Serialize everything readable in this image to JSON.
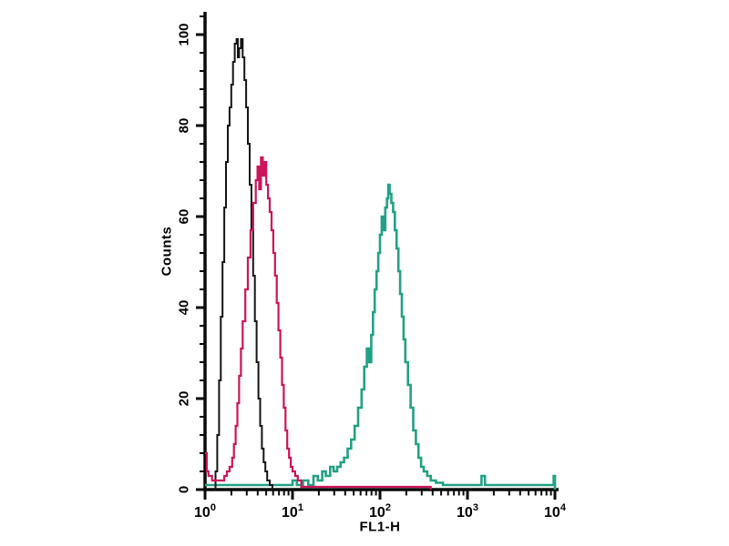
{
  "figure": {
    "background": "#ffffff",
    "axis_color": "#0a0a0a",
    "text_color": "#000000"
  },
  "chart_data": {
    "type": "line",
    "subtype": "flow-cytometry-overlay-histogram",
    "title": "",
    "xlabel": "FL1-H",
    "ylabel": "Counts",
    "x_scale": "log10",
    "x_range_exponents": [
      0,
      4
    ],
    "ylim": [
      0,
      104.8
    ],
    "grid": false,
    "legend": "none",
    "y_major_ticks": [
      0,
      20,
      40,
      60,
      80,
      100
    ],
    "y_minor_step": 4,
    "x_major_exponents": [
      0,
      1,
      2,
      3,
      4
    ],
    "x_major_tick_base": "10",
    "x_minor_multipliers": [
      2,
      3,
      4,
      5,
      6,
      7,
      8,
      9
    ],
    "series": [
      {
        "name": "teal-curve",
        "color": "#23a085",
        "stroke_width": 2.6,
        "peak": {
          "x": 126,
          "counts": 67
        },
        "points_log10x_counts": [
          [
            0.0,
            1
          ],
          [
            0.5,
            1
          ],
          [
            0.85,
            1
          ],
          [
            1.0,
            2
          ],
          [
            1.05,
            1
          ],
          [
            1.12,
            2
          ],
          [
            1.18,
            1
          ],
          [
            1.24,
            3
          ],
          [
            1.29,
            2
          ],
          [
            1.34,
            4
          ],
          [
            1.38,
            3
          ],
          [
            1.43,
            5
          ],
          [
            1.47,
            4
          ],
          [
            1.51,
            5
          ],
          [
            1.55,
            6
          ],
          [
            1.59,
            7
          ],
          [
            1.63,
            9
          ],
          [
            1.67,
            11
          ],
          [
            1.71,
            14
          ],
          [
            1.75,
            18
          ],
          [
            1.79,
            22
          ],
          [
            1.82,
            27
          ],
          [
            1.85,
            31
          ],
          [
            1.875,
            28
          ],
          [
            1.9,
            34
          ],
          [
            1.92,
            39
          ],
          [
            1.94,
            44
          ],
          [
            1.96,
            48
          ],
          [
            1.98,
            52
          ],
          [
            2.0,
            56
          ],
          [
            2.02,
            60
          ],
          [
            2.04,
            57
          ],
          [
            2.06,
            62
          ],
          [
            2.08,
            64
          ],
          [
            2.095,
            67
          ],
          [
            2.11,
            65
          ],
          [
            2.13,
            63
          ],
          [
            2.15,
            61
          ],
          [
            2.17,
            57
          ],
          [
            2.19,
            53
          ],
          [
            2.21,
            48
          ],
          [
            2.23,
            43
          ],
          [
            2.25,
            38
          ],
          [
            2.27,
            33
          ],
          [
            2.29,
            28
          ],
          [
            2.32,
            23
          ],
          [
            2.35,
            18
          ],
          [
            2.38,
            13
          ],
          [
            2.41,
            10
          ],
          [
            2.44,
            7
          ],
          [
            2.47,
            5
          ],
          [
            2.5,
            4
          ],
          [
            2.54,
            3
          ],
          [
            2.58,
            2
          ],
          [
            2.64,
            1.5
          ],
          [
            2.72,
            1
          ],
          [
            2.9,
            1
          ],
          [
            3.1,
            1
          ],
          [
            3.16,
            3
          ],
          [
            3.2,
            1
          ],
          [
            3.5,
            1
          ],
          [
            3.8,
            1
          ],
          [
            3.96,
            1
          ],
          [
            3.985,
            3
          ],
          [
            4.0,
            0
          ]
        ]
      },
      {
        "name": "black-curve",
        "color": "#141414",
        "stroke_width": 2.0,
        "peak": {
          "x": 2.3,
          "counts": 99
        },
        "points_log10x_counts": [
          [
            0.1,
            0
          ],
          [
            0.12,
            4
          ],
          [
            0.14,
            12
          ],
          [
            0.16,
            24
          ],
          [
            0.18,
            38
          ],
          [
            0.2,
            50
          ],
          [
            0.22,
            62
          ],
          [
            0.24,
            72
          ],
          [
            0.26,
            80
          ],
          [
            0.28,
            84
          ],
          [
            0.3,
            89
          ],
          [
            0.32,
            94
          ],
          [
            0.34,
            98
          ],
          [
            0.36,
            99
          ],
          [
            0.375,
            95
          ],
          [
            0.39,
            97
          ],
          [
            0.41,
            99
          ],
          [
            0.43,
            95
          ],
          [
            0.45,
            90
          ],
          [
            0.47,
            84
          ],
          [
            0.49,
            76
          ],
          [
            0.51,
            67
          ],
          [
            0.53,
            57
          ],
          [
            0.55,
            47
          ],
          [
            0.57,
            37
          ],
          [
            0.59,
            28
          ],
          [
            0.61,
            20
          ],
          [
            0.63,
            14
          ],
          [
            0.65,
            9
          ],
          [
            0.67,
            6
          ],
          [
            0.69,
            4
          ],
          [
            0.71,
            2
          ],
          [
            0.74,
            1
          ],
          [
            0.77,
            0
          ]
        ]
      },
      {
        "name": "magenta-curve",
        "color": "#cc1459",
        "stroke_width": 2.2,
        "peak": {
          "x": 4.5,
          "counts": 73
        },
        "points_log10x_counts": [
          [
            0.0,
            8
          ],
          [
            0.02,
            4
          ],
          [
            0.04,
            3
          ],
          [
            0.08,
            2
          ],
          [
            0.13,
            2
          ],
          [
            0.18,
            2
          ],
          [
            0.22,
            3
          ],
          [
            0.25,
            4
          ],
          [
            0.28,
            5
          ],
          [
            0.31,
            7
          ],
          [
            0.33,
            10
          ],
          [
            0.35,
            14
          ],
          [
            0.37,
            19
          ],
          [
            0.39,
            25
          ],
          [
            0.41,
            31
          ],
          [
            0.43,
            37
          ],
          [
            0.46,
            44
          ],
          [
            0.49,
            51
          ],
          [
            0.52,
            57
          ],
          [
            0.55,
            63
          ],
          [
            0.58,
            68
          ],
          [
            0.6,
            71
          ],
          [
            0.62,
            66
          ],
          [
            0.64,
            73
          ],
          [
            0.66,
            69
          ],
          [
            0.68,
            72
          ],
          [
            0.7,
            67
          ],
          [
            0.72,
            64
          ],
          [
            0.74,
            61
          ],
          [
            0.76,
            57
          ],
          [
            0.78,
            52
          ],
          [
            0.8,
            47
          ],
          [
            0.82,
            41
          ],
          [
            0.84,
            35
          ],
          [
            0.86,
            29
          ],
          [
            0.88,
            23
          ],
          [
            0.9,
            18
          ],
          [
            0.92,
            13
          ],
          [
            0.94,
            9
          ],
          [
            0.96,
            7
          ],
          [
            0.98,
            5
          ],
          [
            1.0,
            4
          ],
          [
            1.03,
            3
          ],
          [
            1.06,
            2
          ],
          [
            1.1,
            0.6
          ],
          [
            1.6,
            0.6
          ],
          [
            2.1,
            0.6
          ],
          [
            2.54,
            0.6
          ],
          [
            2.58,
            0
          ]
        ]
      }
    ]
  }
}
